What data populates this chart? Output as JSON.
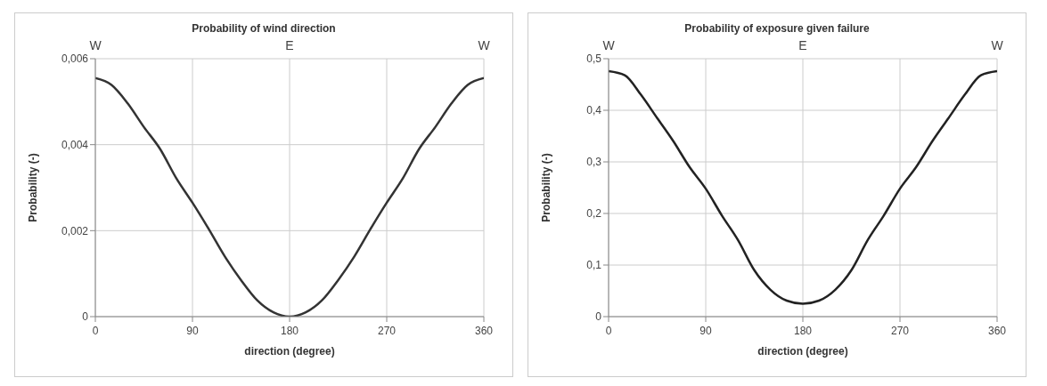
{
  "chart_data": [
    {
      "type": "line",
      "title": "Probability of wind direction",
      "xlabel": "direction (degree)",
      "ylabel": "Probability (-)",
      "x": [
        0,
        15,
        30,
        45,
        60,
        75,
        90,
        105,
        120,
        135,
        150,
        165,
        180,
        195,
        210,
        225,
        240,
        255,
        270,
        285,
        300,
        315,
        330,
        345,
        360
      ],
      "series": [
        {
          "color": "#333333",
          "values": [
            0.00555,
            0.00539,
            0.00496,
            0.00441,
            0.0039,
            0.00322,
            0.00265,
            0.00204,
            0.0014,
            0.00085,
            0.00038,
            0.0001,
            0,
            0.0001,
            0.00038,
            0.00085,
            0.0014,
            0.00204,
            0.00265,
            0.00322,
            0.0039,
            0.00441,
            0.00496,
            0.00539,
            0.00555
          ]
        }
      ],
      "xlim": [
        0,
        360
      ],
      "xticks": [
        0,
        90,
        180,
        270,
        360
      ],
      "ylim": [
        0,
        0.006
      ],
      "yticks": [
        {
          "value": 0,
          "label": "0"
        },
        {
          "value": 0.002,
          "label": "0,002"
        },
        {
          "value": 0.004,
          "label": "0,004"
        },
        {
          "value": 0.006,
          "label": "0,006"
        }
      ],
      "annotations": [
        "W",
        "E",
        "W"
      ],
      "grid": true,
      "marker": "none",
      "line_style": "solid"
    },
    {
      "type": "line",
      "title": "Probability of exposure given failure",
      "xlabel": "direction (degree)",
      "ylabel": "Probability (-)",
      "x": [
        0,
        15,
        30,
        45,
        60,
        75,
        90,
        105,
        120,
        135,
        150,
        165,
        180,
        195,
        210,
        225,
        240,
        255,
        270,
        285,
        300,
        315,
        330,
        345,
        360
      ],
      "series": [
        {
          "color": "#222222",
          "values": [
            0.476,
            0.468,
            0.43,
            0.385,
            0.34,
            0.29,
            0.248,
            0.196,
            0.148,
            0.09,
            0.052,
            0.031,
            0.025,
            0.031,
            0.052,
            0.09,
            0.148,
            0.196,
            0.248,
            0.29,
            0.34,
            0.385,
            0.43,
            0.468,
            0.476
          ]
        }
      ],
      "xlim": [
        0,
        360
      ],
      "xticks": [
        0,
        90,
        180,
        270,
        360
      ],
      "ylim": [
        0,
        0.5
      ],
      "yticks": [
        {
          "value": 0,
          "label": "0"
        },
        {
          "value": 0.1,
          "label": "0,1"
        },
        {
          "value": 0.2,
          "label": "0,2"
        },
        {
          "value": 0.3,
          "label": "0,3"
        },
        {
          "value": 0.4,
          "label": "0,4"
        },
        {
          "value": 0.5,
          "label": "0,5"
        }
      ],
      "annotations": [
        "W",
        "E",
        "W"
      ],
      "grid": true,
      "marker": "none",
      "line_style": "solid"
    }
  ]
}
